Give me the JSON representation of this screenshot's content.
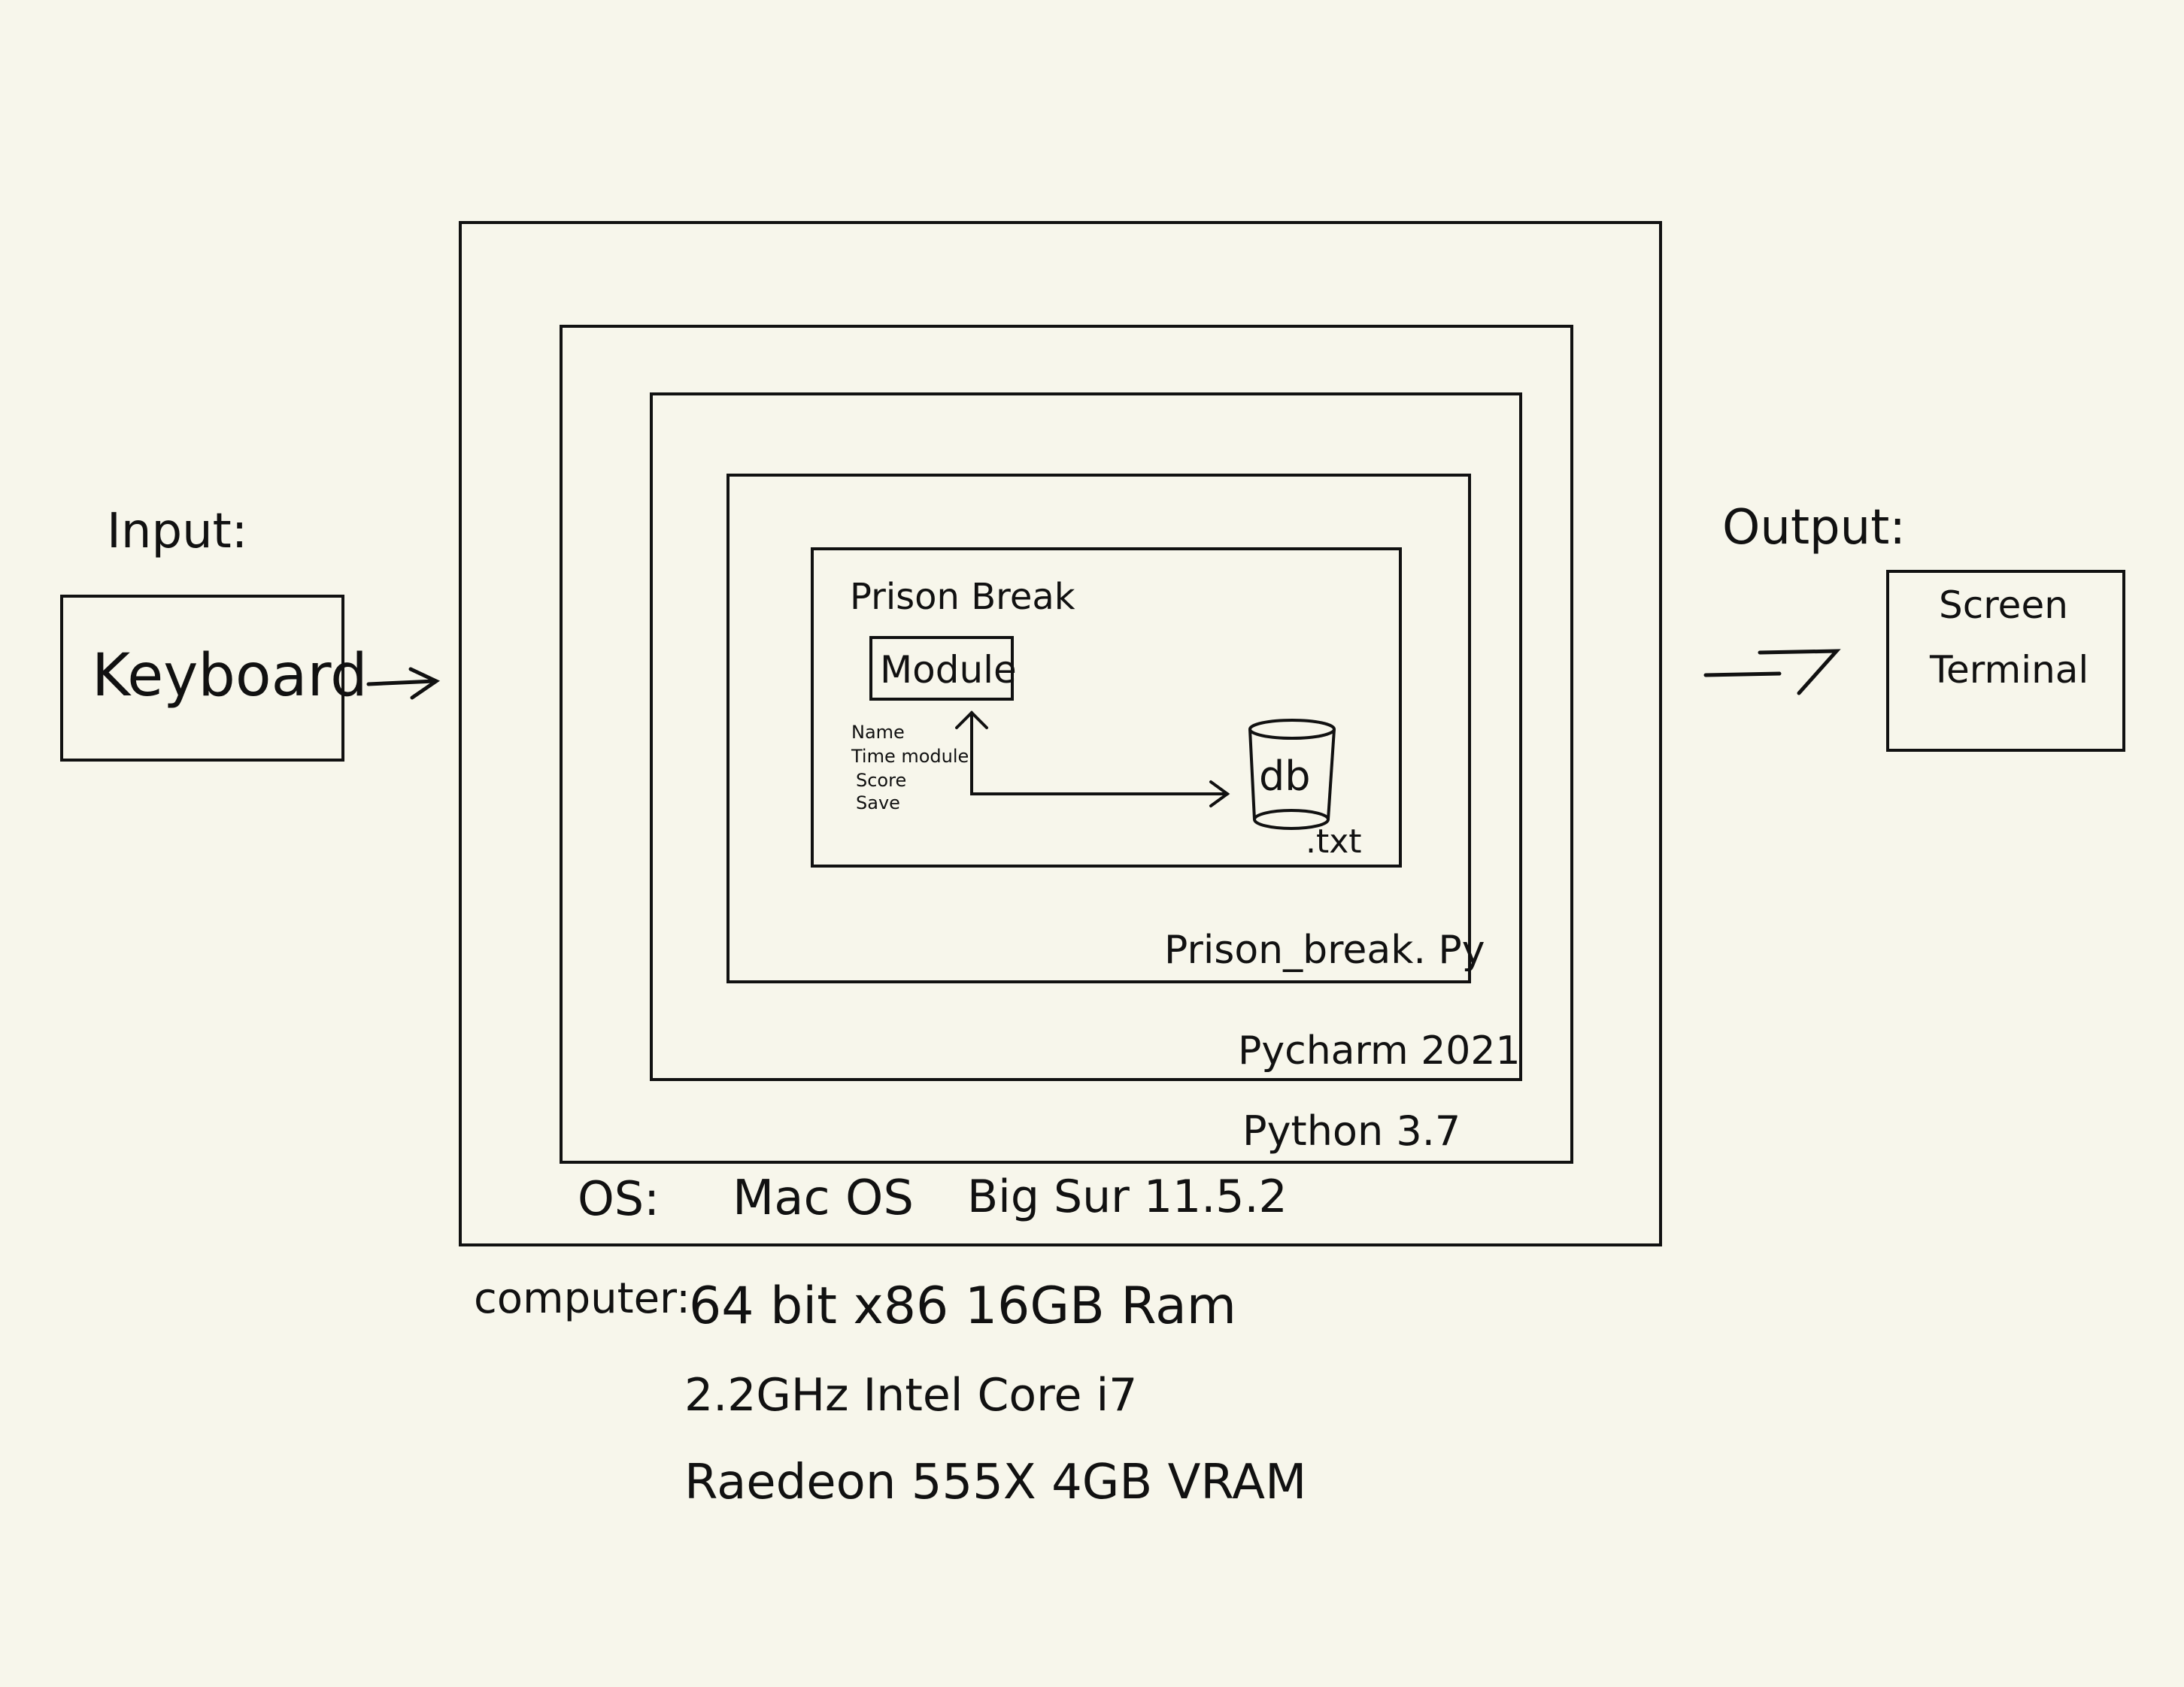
{
  "input": {
    "label": "Input:",
    "device": "Keyboard"
  },
  "output": {
    "label": "Output:",
    "line1": "Screen",
    "line2": "Terminal"
  },
  "os": {
    "label": "OS:",
    "name": "Mac OS",
    "version": "Big Sur 11.5.2"
  },
  "python": {
    "label": "Python 3.7"
  },
  "ide": {
    "label": "Pycharm 2021"
  },
  "file": {
    "label": "Prison_break. Py"
  },
  "program": {
    "title": "Prison Break",
    "module": "Module",
    "module_items": [
      "Name",
      "Time module",
      "Score",
      "Save"
    ],
    "db": "db",
    "db_ext": ".txt"
  },
  "computer": {
    "label": "computer:",
    "lines": [
      "64 bit x86 16GB Ram",
      "2.2GHz Intel Core i7",
      "Raedeon 555X 4GB VRAM"
    ]
  }
}
